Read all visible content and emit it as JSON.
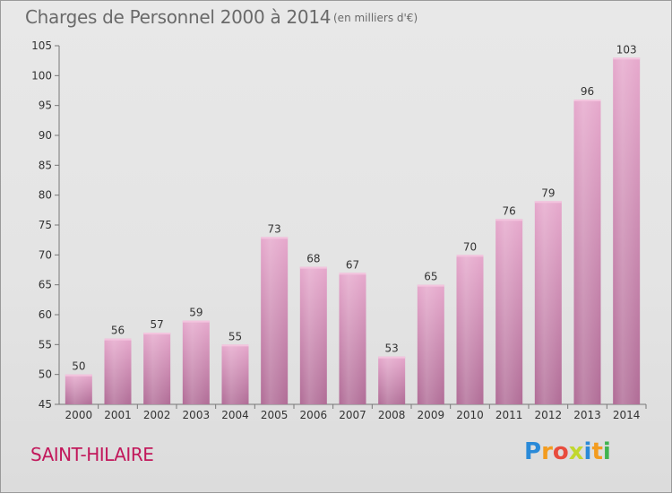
{
  "header": {
    "title": "Charges de Personnel 2000 à 2014",
    "subtitle": "(en milliers d'€)"
  },
  "footer": {
    "commune": "SAINT-HILAIRE",
    "logo_letters": [
      "P",
      "r",
      "o",
      "x",
      "i",
      "t",
      "i"
    ],
    "logo_colors": [
      "#2a8ad8",
      "#f39c1f",
      "#e84c3d",
      "#c1d72e",
      "#2a8ad8",
      "#f39c1f",
      "#3fb34f"
    ]
  },
  "colors": {
    "bar_top": "#e6a8cc",
    "bar_bottom": "#b06c96",
    "commune_text": "#c2185b"
  },
  "chart_data": {
    "type": "bar",
    "title": "Charges de Personnel 2000 à 2014",
    "subtitle": "(en milliers d'€)",
    "categories": [
      "2000",
      "2001",
      "2002",
      "2003",
      "2004",
      "2005",
      "2006",
      "2007",
      "2008",
      "2009",
      "2010",
      "2011",
      "2012",
      "2013",
      "2014"
    ],
    "values": [
      50,
      56,
      57,
      59,
      55,
      73,
      68,
      67,
      53,
      65,
      70,
      76,
      79,
      96,
      103
    ],
    "data_labels": [
      "50",
      "56",
      "57",
      "59",
      "55",
      "73",
      "68",
      "67",
      "53",
      "65",
      "70",
      "76",
      "79",
      "96",
      "103"
    ],
    "y_ticks": [
      "45",
      "50",
      "55",
      "60",
      "65",
      "70",
      "75",
      "80",
      "85",
      "90",
      "95",
      "100",
      "105"
    ],
    "ylim": [
      45,
      105
    ],
    "xlabel": "",
    "ylabel": "",
    "grid": false,
    "legend": "none"
  }
}
